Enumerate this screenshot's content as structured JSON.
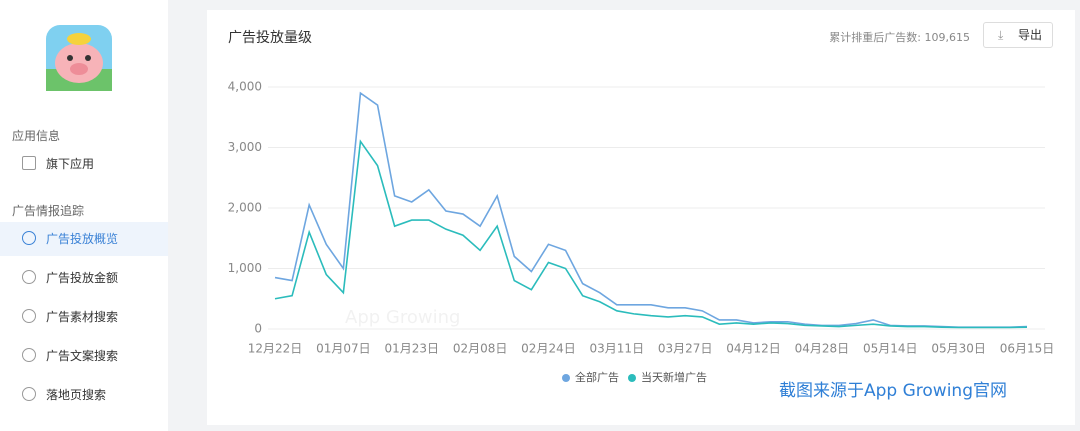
{
  "sidebar": {
    "section1": "应用信息",
    "item_apps": "旗下应用",
    "section2": "广告情报追踪",
    "items": [
      "广告投放概览",
      "广告投放金额",
      "广告素材搜索",
      "广告文案搜索",
      "落地页搜索"
    ]
  },
  "header": {
    "title": "广告投放量级",
    "total_label": "累计排重后广告数: 109,615",
    "export": "导出"
  },
  "watermark": "截图来源于App Growing官网",
  "chart_watermark": "App Growing",
  "chart_data": {
    "type": "line",
    "categories": [
      "12月22日",
      null,
      null,
      null,
      "01月07日",
      null,
      null,
      null,
      "01月23日",
      null,
      null,
      null,
      "02月08日",
      null,
      null,
      null,
      "02月24日",
      null,
      null,
      null,
      "03月11日",
      null,
      null,
      null,
      "03月27日",
      null,
      null,
      null,
      "04月12日",
      null,
      null,
      null,
      "04月28日",
      null,
      null,
      null,
      "05月14日",
      null,
      null,
      null,
      "05月30日",
      null,
      null,
      null,
      "06月15日"
    ],
    "series": [
      {
        "name": "全部广告",
        "color": "#6ea6e0",
        "values": [
          850,
          800,
          2050,
          1400,
          1000,
          3900,
          3700,
          2200,
          2100,
          2300,
          1950,
          1900,
          1700,
          2200,
          1200,
          950,
          1400,
          1300,
          750,
          600,
          400,
          400,
          400,
          350,
          350,
          300,
          150,
          150,
          100,
          120,
          120,
          80,
          60,
          60,
          90,
          150,
          60,
          50,
          50,
          40,
          30,
          30,
          30,
          30,
          40
        ]
      },
      {
        "name": "当天新增广告",
        "color": "#2bbcbc",
        "values": [
          500,
          550,
          1600,
          900,
          600,
          3100,
          2700,
          1700,
          1800,
          1800,
          1650,
          1550,
          1300,
          1700,
          800,
          650,
          1100,
          1000,
          550,
          450,
          300,
          250,
          220,
          200,
          220,
          200,
          80,
          100,
          80,
          100,
          90,
          60,
          50,
          40,
          60,
          80,
          50,
          40,
          40,
          30,
          25,
          25,
          25,
          25,
          30
        ]
      }
    ],
    "ylim": [
      0,
      4000
    ],
    "yticks": [
      0,
      {
        "value": 1000,
        "label": "1,000"
      },
      {
        "value": 2000,
        "label": "2,000"
      },
      {
        "value": 3000,
        "label": "3,000"
      },
      {
        "value": 4000,
        "label": "4,000"
      }
    ],
    "grid": true
  }
}
